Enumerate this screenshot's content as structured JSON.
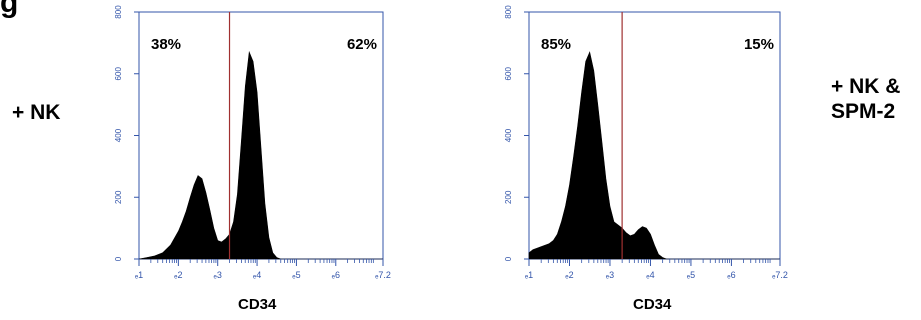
{
  "figure": {
    "corner_glyph": "g",
    "left_condition": "+ NK",
    "right_condition_line1": "+ NK &",
    "right_condition_line2": "SPM-2"
  },
  "chart_data": [
    {
      "type": "area",
      "xlabel": "CD34",
      "ylabel": "",
      "x_scale": "log10",
      "xlim": [
        1,
        7.2
      ],
      "ylim": [
        0,
        800
      ],
      "y_ticks": [
        "0",
        "200",
        "400",
        "600",
        "800"
      ],
      "x_ticks": [
        "ₑ1",
        "ₑ2",
        "ₑ3",
        "ₑ4",
        "ₑ5",
        "ₑ6",
        "ₑ7.2"
      ],
      "gate_at": 3.3,
      "gate_labels": {
        "left": "38%",
        "right": "62%"
      },
      "x": [
        1.0,
        1.2,
        1.4,
        1.6,
        1.8,
        2.0,
        2.1,
        2.2,
        2.3,
        2.4,
        2.5,
        2.6,
        2.7,
        2.8,
        2.9,
        3.0,
        3.1,
        3.2,
        3.3,
        3.4,
        3.5,
        3.6,
        3.7,
        3.8,
        3.9,
        4.0,
        4.1,
        4.2,
        4.3,
        4.4,
        4.5,
        4.6,
        4.7,
        4.8,
        5.0,
        5.5,
        6.0,
        7.2
      ],
      "y": [
        0,
        5,
        10,
        20,
        45,
        90,
        120,
        155,
        200,
        240,
        270,
        260,
        215,
        160,
        100,
        60,
        55,
        65,
        80,
        120,
        210,
        380,
        560,
        670,
        640,
        540,
        360,
        180,
        70,
        20,
        5,
        0,
        0,
        0,
        0,
        0,
        0,
        0
      ]
    },
    {
      "type": "area",
      "xlabel": "CD34",
      "ylabel": "",
      "x_scale": "log10",
      "xlim": [
        1,
        7.2
      ],
      "ylim": [
        0,
        800
      ],
      "y_ticks": [
        "0",
        "200",
        "400",
        "600",
        "800"
      ],
      "x_ticks": [
        "ₑ1",
        "ₑ2",
        "ₑ3",
        "ₑ4",
        "ₑ5",
        "ₑ6",
        "ₑ7.2"
      ],
      "gate_at": 3.3,
      "gate_labels": {
        "left": "85%",
        "right": "15%"
      },
      "x": [
        1.0,
        1.1,
        1.2,
        1.3,
        1.4,
        1.5,
        1.6,
        1.7,
        1.8,
        1.9,
        2.0,
        2.1,
        2.2,
        2.3,
        2.4,
        2.5,
        2.6,
        2.7,
        2.8,
        2.9,
        3.0,
        3.1,
        3.2,
        3.3,
        3.4,
        3.5,
        3.6,
        3.7,
        3.8,
        3.9,
        4.0,
        4.1,
        4.2,
        4.3,
        4.4,
        4.6,
        5.0,
        6.0,
        7.2
      ],
      "y": [
        20,
        30,
        35,
        40,
        45,
        50,
        60,
        80,
        120,
        170,
        240,
        330,
        430,
        540,
        640,
        670,
        610,
        500,
        380,
        260,
        170,
        120,
        110,
        100,
        85,
        75,
        80,
        95,
        105,
        100,
        80,
        45,
        15,
        5,
        0,
        0,
        0,
        0,
        0
      ]
    }
  ]
}
